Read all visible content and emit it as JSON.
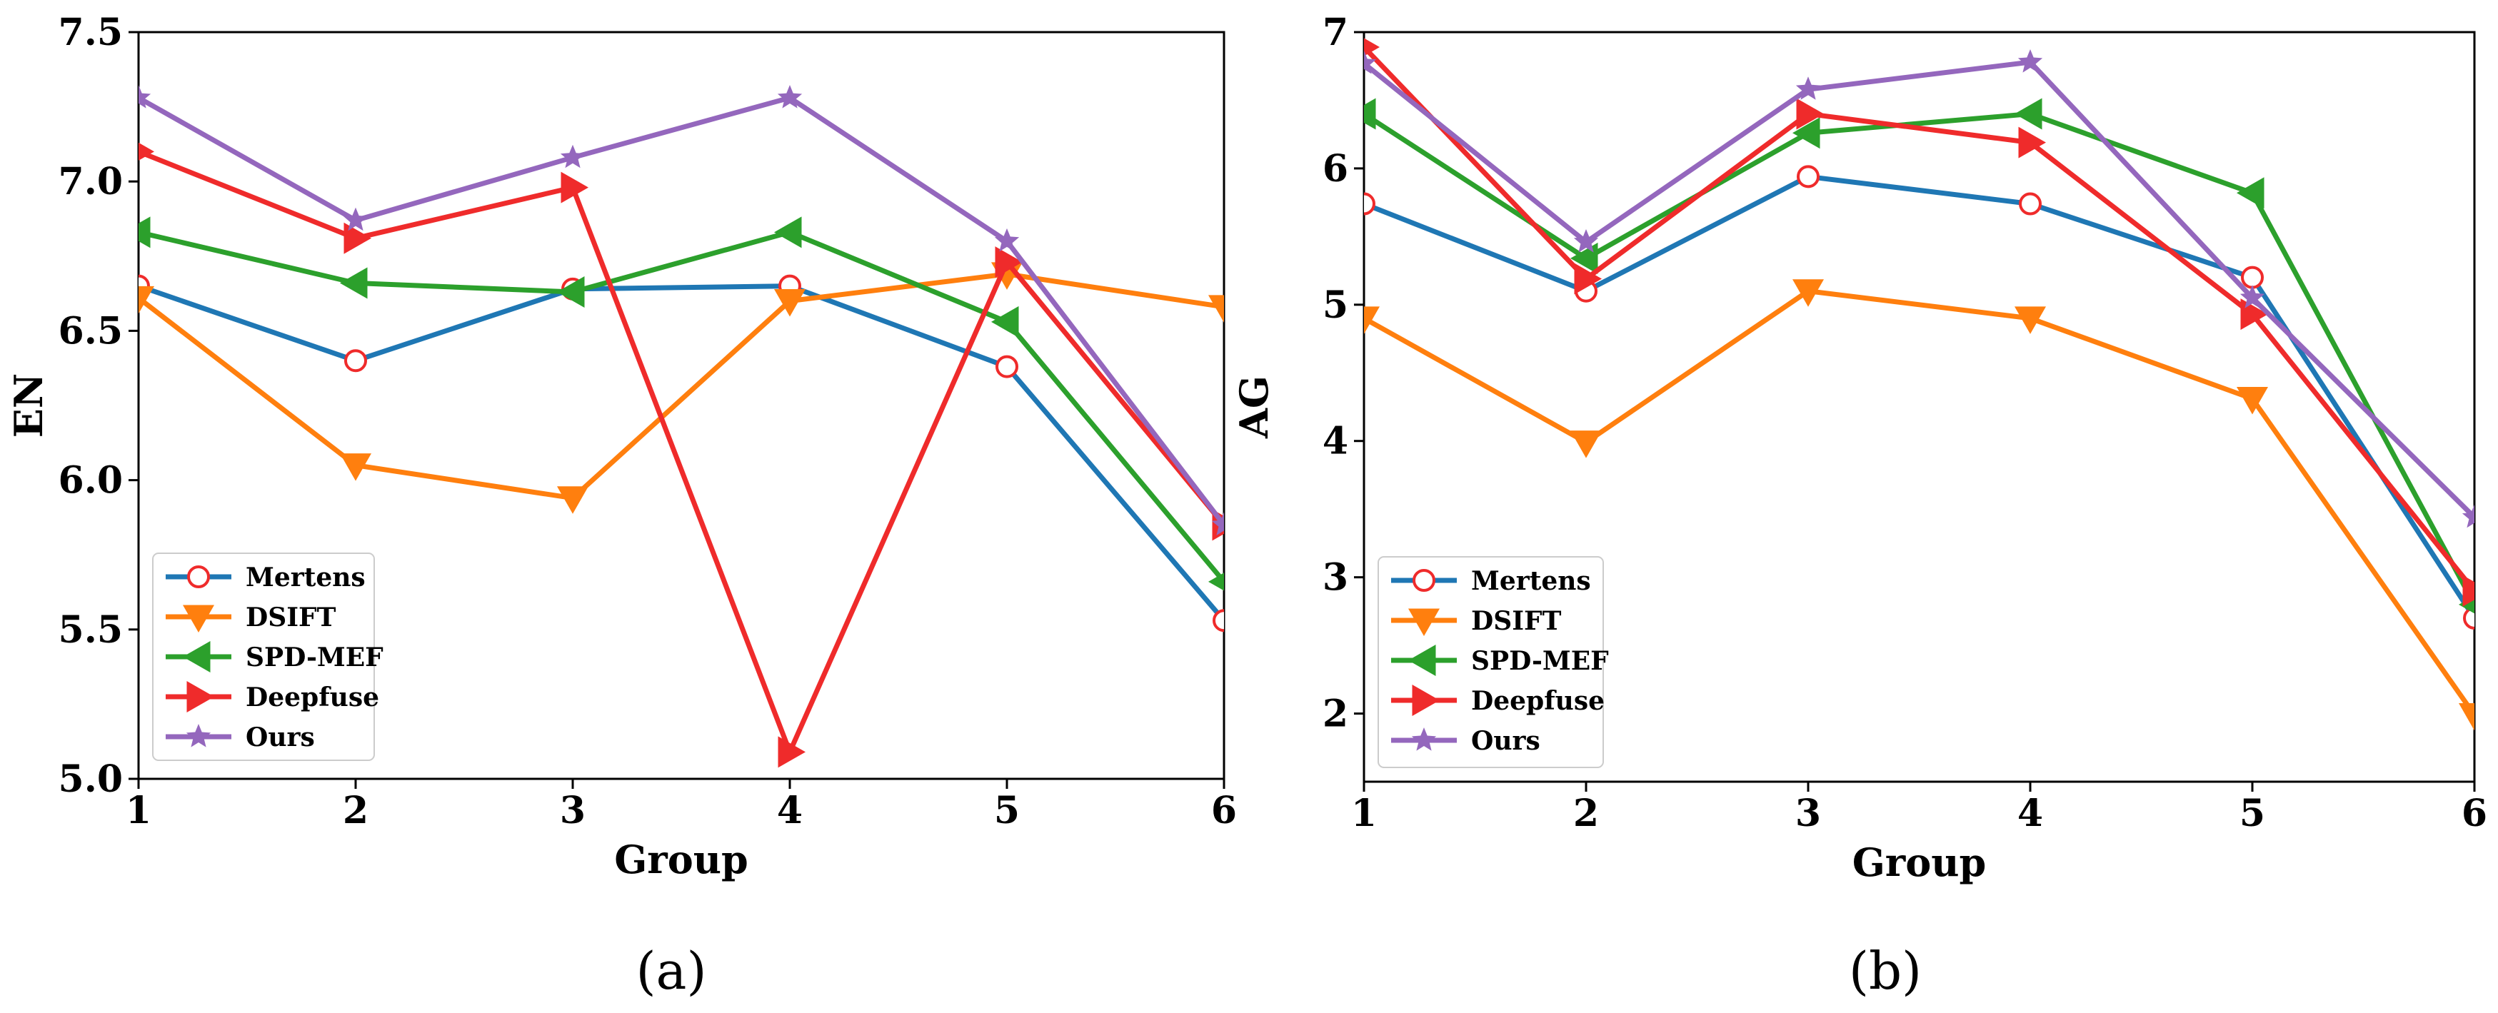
{
  "chart_data": [
    {
      "type": "line",
      "caption": "(a)",
      "xlabel": "Group",
      "ylabel": "EN",
      "xlim": [
        1,
        6
      ],
      "ylim": [
        5.0,
        7.5
      ],
      "xticks": [
        1,
        2,
        3,
        4,
        5,
        6
      ],
      "xtick_labels": [
        "1",
        "2",
        "3",
        "4",
        "5",
        "6"
      ],
      "yticks": [
        5.0,
        5.5,
        6.0,
        6.5,
        7.0,
        7.5
      ],
      "ytick_labels": [
        "5.0",
        "5.5",
        "6.0",
        "6.5",
        "7.0",
        "7.5"
      ],
      "legend_position": "lower-left",
      "grid": false,
      "x": [
        1,
        2,
        3,
        4,
        5,
        6
      ],
      "series": [
        {
          "name": "Mertens",
          "color": "#1f77b4",
          "marker": "circle-open",
          "values": [
            6.65,
            6.4,
            6.64,
            6.65,
            6.38,
            5.53
          ]
        },
        {
          "name": "DSIFT",
          "color": "#ff7f0e",
          "marker": "triangle-down",
          "values": [
            6.61,
            6.05,
            5.94,
            6.6,
            6.69,
            6.58
          ]
        },
        {
          "name": "SPD-MEF",
          "color": "#2ca02c",
          "marker": "triangle-left",
          "values": [
            6.83,
            6.66,
            6.63,
            6.83,
            6.53,
            5.66
          ]
        },
        {
          "name": "Deepfuse",
          "color": "#ef2b2b",
          "marker": "triangle-right",
          "values": [
            7.1,
            6.81,
            6.98,
            5.09,
            6.73,
            5.85
          ]
        },
        {
          "name": "Ours",
          "color": "#9467bd",
          "marker": "star",
          "values": [
            7.28,
            6.87,
            7.08,
            7.28,
            6.8,
            5.85
          ]
        }
      ]
    },
    {
      "type": "line",
      "caption": "(b)",
      "xlabel": "Group",
      "ylabel": "AG",
      "xlim": [
        1,
        6
      ],
      "ylim": [
        1.5,
        7.0
      ],
      "xticks": [
        1,
        2,
        3,
        4,
        5,
        6
      ],
      "xtick_labels": [
        "1",
        "2",
        "3",
        "4",
        "5",
        "6"
      ],
      "yticks": [
        2,
        3,
        4,
        5,
        6,
        7
      ],
      "ytick_labels": [
        "2",
        "3",
        "4",
        "5",
        "6",
        "7"
      ],
      "legend_position": "lower-left",
      "grid": false,
      "x": [
        1,
        2,
        3,
        4,
        5,
        6
      ],
      "series": [
        {
          "name": "Mertens",
          "color": "#1f77b4",
          "marker": "circle-open",
          "values": [
            5.74,
            5.1,
            5.94,
            5.74,
            5.2,
            2.7
          ]
        },
        {
          "name": "DSIFT",
          "color": "#ff7f0e",
          "marker": "triangle-down",
          "values": [
            4.9,
            3.99,
            5.1,
            4.9,
            4.31,
            1.99
          ]
        },
        {
          "name": "SPD-MEF",
          "color": "#2ca02c",
          "marker": "triangle-left",
          "values": [
            6.4,
            5.34,
            6.26,
            6.4,
            5.82,
            2.8
          ]
        },
        {
          "name": "Deepfuse",
          "color": "#ef2b2b",
          "marker": "triangle-right",
          "values": [
            6.89,
            5.19,
            6.4,
            6.19,
            4.93,
            2.9
          ]
        },
        {
          "name": "Ours",
          "color": "#9467bd",
          "marker": "star",
          "values": [
            6.77,
            5.46,
            6.58,
            6.78,
            5.05,
            3.44
          ]
        }
      ]
    }
  ]
}
